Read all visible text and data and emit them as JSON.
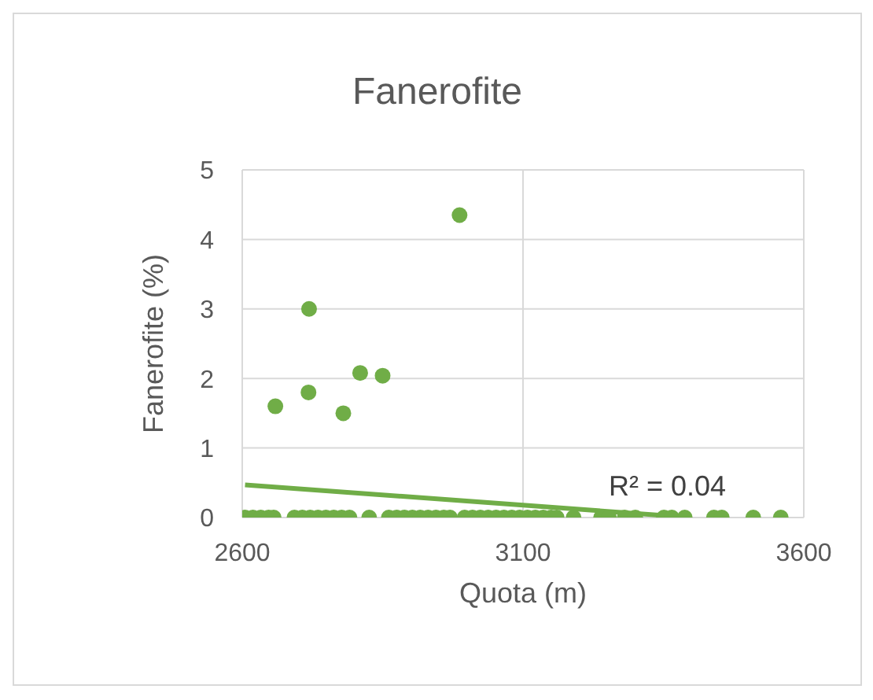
{
  "chart_data": {
    "type": "scatter",
    "title": "Fanerofite",
    "xlabel": "Quota (m)",
    "ylabel": "Fanerofite (%)",
    "xlim": [
      2600,
      3600
    ],
    "xticks": [
      2600,
      3100,
      3600
    ],
    "ylim": [
      0,
      5
    ],
    "yticks": [
      0,
      1,
      2,
      3,
      4,
      5
    ],
    "grid": true,
    "legend": false,
    "marker": "circle",
    "annotations": [
      "R² = 0.04"
    ],
    "series": [
      {
        "color": "#70ad47",
        "x": [
          2987,
          2719,
          2810,
          2850,
          2718,
          2659,
          2780,
          2605,
          2619,
          2633,
          2647,
          2656,
          2693,
          2707,
          2721,
          2735,
          2749,
          2763,
          2777,
          2791,
          2826,
          2861,
          2875,
          2889,
          2903,
          2917,
          2931,
          2945,
          2959,
          2970,
          2996,
          3010,
          3024,
          3038,
          3052,
          3066,
          3080,
          3094,
          3108,
          3122,
          3136,
          3150,
          3160,
          3190,
          3239,
          3253,
          3281,
          3300,
          3351,
          3365,
          3388,
          3440,
          3454,
          3510,
          3559
        ],
        "values": [
          4.35,
          3.0,
          2.08,
          2.04,
          1.8,
          1.6,
          1.5,
          0,
          0,
          0,
          0,
          0,
          0,
          0,
          0,
          0,
          0,
          0,
          0,
          0,
          0,
          0,
          0,
          0,
          0,
          0,
          0,
          0,
          0,
          0,
          0,
          0,
          0,
          0,
          0,
          0,
          0,
          0,
          0,
          0,
          0,
          0,
          0,
          0,
          0,
          0,
          0,
          0,
          0,
          0,
          0,
          0,
          0,
          0,
          0
        ]
      },
      {
        "type": "line",
        "marker": "none",
        "color": "#70ad47",
        "x": [
          2605,
          3400
        ],
        "values": [
          0.47,
          0.0
        ]
      }
    ]
  }
}
